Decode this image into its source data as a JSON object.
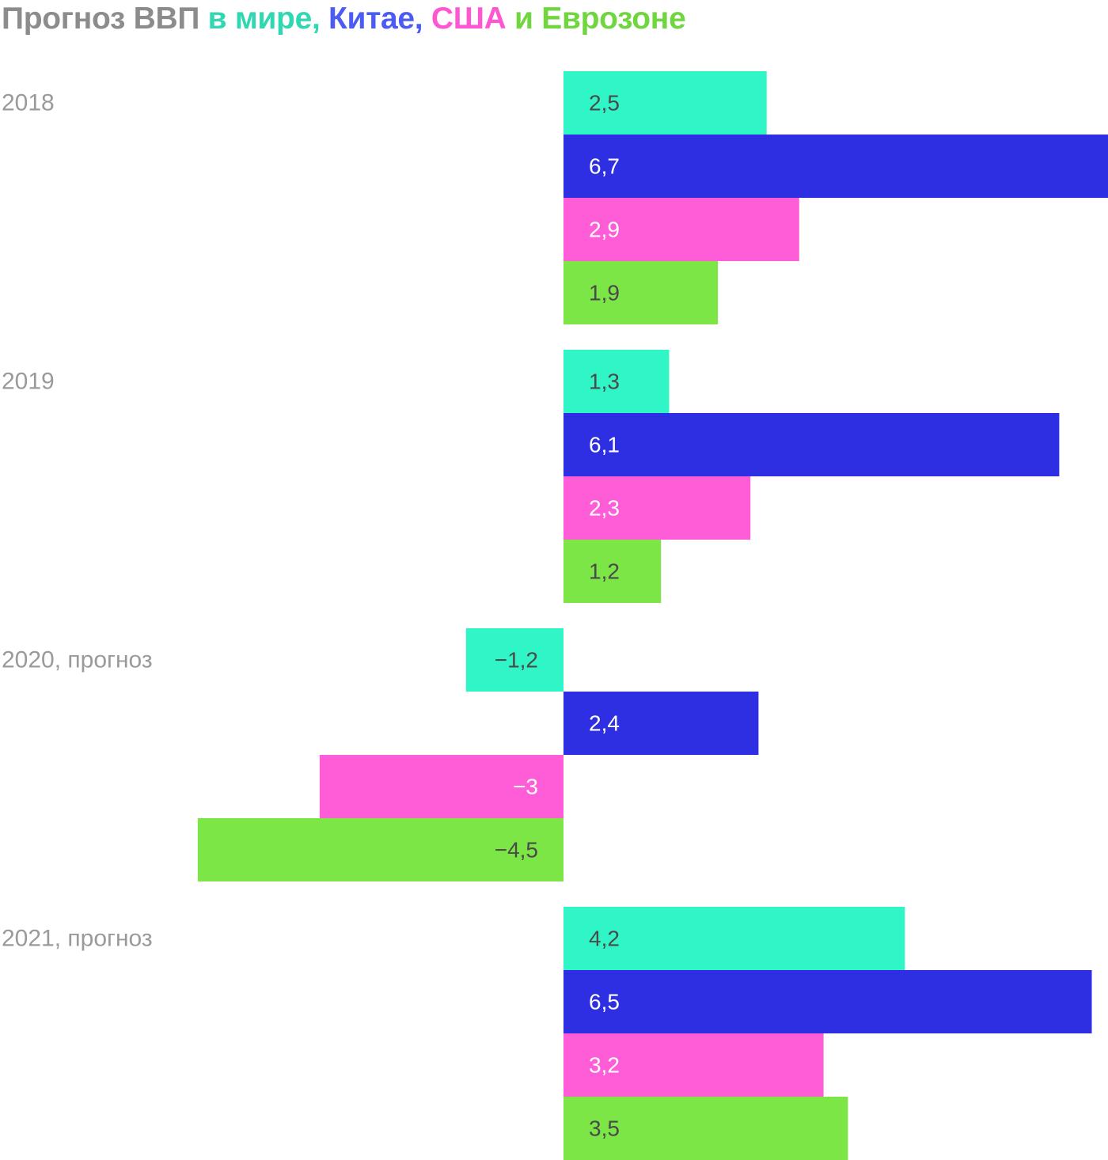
{
  "title": {
    "prefix": "Прогноз ВВП ",
    "world": "в мире,",
    "china": " Китае,",
    "usa": " США",
    "and": " и ",
    "eurozone": "Еврозоне"
  },
  "colors": {
    "prefix": "#8c8c8c",
    "world_title": "#2fd8b0",
    "china_title": "#4a5cf2",
    "usa_title": "#ff57d4",
    "eurozone_title": "#6fd63f",
    "world_bar": "#30f5c6",
    "china_bar": "#2e2ee2",
    "usa_bar": "#ff5cd8",
    "eurozone_bar": "#7be645",
    "label_dark": "#4a4a4a",
    "label_light": "#ffffff",
    "category": "#9a9a9a"
  },
  "chart_data": {
    "type": "bar",
    "orientation": "horizontal",
    "title": "Прогноз ВВП в мире, Китае, США и Еврозоне",
    "categories": [
      "2018",
      "2019",
      "2020, прогноз",
      "2021, прогноз"
    ],
    "series": [
      {
        "name": "в мире",
        "key": "world",
        "values": [
          2.5,
          1.3,
          -1.2,
          4.2
        ],
        "labels": [
          "2,5",
          "1,3",
          "−1,2",
          "4,2"
        ]
      },
      {
        "name": "Китае",
        "key": "china",
        "values": [
          6.7,
          6.1,
          2.4,
          6.5
        ],
        "labels": [
          "6,7",
          "6,1",
          "2,4",
          "6,5"
        ]
      },
      {
        "name": "США",
        "key": "usa",
        "values": [
          2.9,
          2.3,
          -3,
          3.2
        ],
        "labels": [
          "2,9",
          "2,3",
          "−3",
          "3,2"
        ]
      },
      {
        "name": "Еврозоне",
        "key": "eurozone",
        "values": [
          1.9,
          1.2,
          -4.5,
          3.5
        ],
        "labels": [
          "1,9",
          "1,2",
          "−4,5",
          "3,5"
        ]
      }
    ],
    "xlim": [
      -4.5,
      6.7
    ],
    "grid": false,
    "legend": "title"
  }
}
